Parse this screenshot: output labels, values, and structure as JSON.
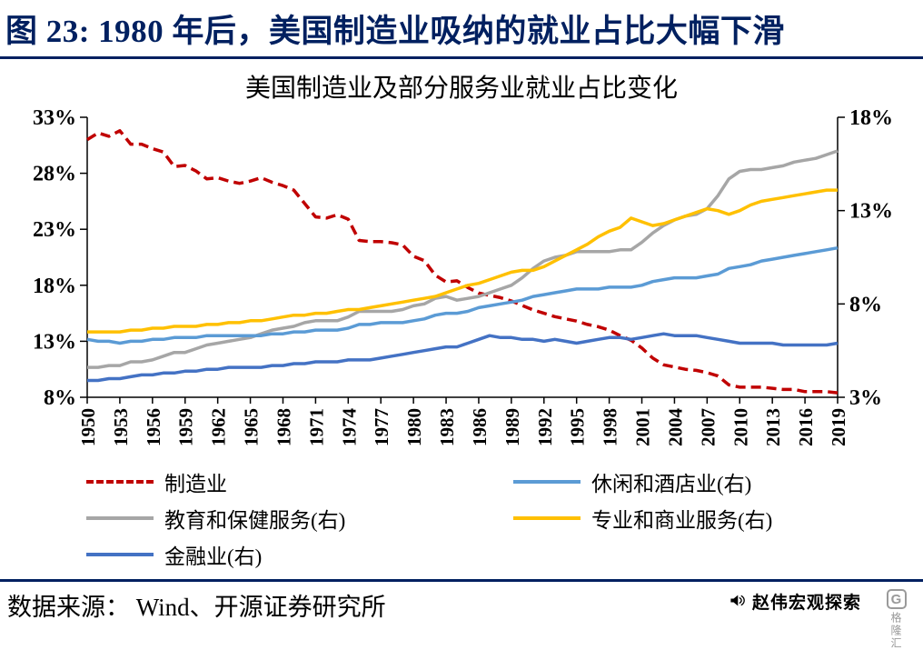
{
  "header": {
    "title": "图 23:  1980 年后，美国制造业吸纳的就业占比大幅下滑",
    "accent_color": "#002060"
  },
  "chart": {
    "title": "美国制造业及部分服务业就业占比变化"
  },
  "footer": {
    "source": "数据来源： Wind、开源证券研究所",
    "watermark": "赵伟宏观探索",
    "watermark_icon": "speaker-icon",
    "logo_badge": "G",
    "logo_text": "格隆汇"
  },
  "chart_data": {
    "type": "line",
    "title": "美国制造业及部分服务业就业占比变化",
    "grid": false,
    "legend_position": "bottom",
    "legend_order": [
      0,
      3,
      1,
      4,
      2
    ],
    "x": [
      1950,
      1951,
      1952,
      1953,
      1954,
      1955,
      1956,
      1957,
      1958,
      1959,
      1960,
      1961,
      1962,
      1963,
      1964,
      1965,
      1966,
      1967,
      1968,
      1969,
      1970,
      1971,
      1972,
      1973,
      1974,
      1975,
      1976,
      1977,
      1978,
      1979,
      1980,
      1981,
      1982,
      1983,
      1984,
      1985,
      1986,
      1987,
      1988,
      1989,
      1990,
      1991,
      1992,
      1993,
      1994,
      1995,
      1996,
      1997,
      1998,
      1999,
      2000,
      2001,
      2002,
      2003,
      2004,
      2005,
      2006,
      2007,
      2008,
      2009,
      2010,
      2011,
      2012,
      2013,
      2014,
      2015,
      2016,
      2017,
      2018,
      2019
    ],
    "x_ticks": [
      1950,
      1953,
      1956,
      1959,
      1962,
      1965,
      1968,
      1971,
      1974,
      1977,
      1980,
      1983,
      1986,
      1989,
      1992,
      1995,
      1998,
      2001,
      2004,
      2007,
      2010,
      2013,
      2016,
      2019
    ],
    "left_axis": {
      "min": 8,
      "max": 33,
      "tick_values": [
        8,
        13,
        18,
        23,
        28,
        33
      ],
      "unit": "%"
    },
    "right_axis": {
      "min": 3,
      "max": 18,
      "tick_values": [
        3,
        8,
        13,
        18
      ],
      "unit": "%"
    },
    "series": [
      {
        "name": "制造业",
        "axis": "left",
        "color": "#C00000",
        "style": "dashed",
        "values": [
          31.0,
          31.6,
          31.3,
          31.8,
          30.6,
          30.6,
          30.2,
          29.9,
          28.6,
          28.7,
          28.2,
          27.5,
          27.6,
          27.3,
          27.1,
          27.3,
          27.6,
          27.2,
          26.9,
          26.5,
          25.3,
          24.1,
          24.0,
          24.3,
          23.9,
          22.0,
          21.9,
          21.9,
          21.8,
          21.6,
          20.6,
          20.2,
          18.9,
          18.3,
          18.4,
          17.8,
          17.3,
          17.1,
          16.9,
          16.6,
          16.2,
          15.8,
          15.5,
          15.2,
          15.0,
          14.8,
          14.5,
          14.3,
          14.0,
          13.5,
          13.1,
          12.4,
          11.5,
          10.9,
          10.7,
          10.5,
          10.4,
          10.2,
          9.9,
          9.1,
          8.9,
          8.9,
          8.9,
          8.8,
          8.7,
          8.7,
          8.5,
          8.5,
          8.5,
          8.4
        ]
      },
      {
        "name": "教育和保健服务(右)",
        "axis": "right",
        "color": "#A6A6A6",
        "style": "solid",
        "values": [
          4.6,
          4.6,
          4.7,
          4.7,
          4.9,
          4.9,
          5.0,
          5.2,
          5.4,
          5.4,
          5.6,
          5.8,
          5.9,
          6.0,
          6.1,
          6.2,
          6.4,
          6.6,
          6.7,
          6.8,
          7.0,
          7.1,
          7.1,
          7.1,
          7.3,
          7.6,
          7.6,
          7.6,
          7.6,
          7.7,
          7.9,
          8.0,
          8.3,
          8.4,
          8.2,
          8.3,
          8.4,
          8.6,
          8.8,
          9.0,
          9.4,
          9.9,
          10.3,
          10.5,
          10.6,
          10.8,
          10.8,
          10.8,
          10.8,
          10.9,
          10.9,
          11.3,
          11.8,
          12.2,
          12.5,
          12.7,
          12.8,
          13.1,
          13.8,
          14.7,
          15.1,
          15.2,
          15.2,
          15.3,
          15.4,
          15.6,
          15.7,
          15.8,
          16.0,
          16.2
        ]
      },
      {
        "name": "金融业(右)",
        "axis": "right",
        "color": "#4472C4",
        "style": "solid",
        "values": [
          3.9,
          3.9,
          4.0,
          4.0,
          4.1,
          4.2,
          4.2,
          4.3,
          4.3,
          4.4,
          4.4,
          4.5,
          4.5,
          4.6,
          4.6,
          4.6,
          4.6,
          4.7,
          4.7,
          4.8,
          4.8,
          4.9,
          4.9,
          4.9,
          5.0,
          5.0,
          5.0,
          5.1,
          5.2,
          5.3,
          5.4,
          5.5,
          5.6,
          5.7,
          5.7,
          5.9,
          6.1,
          6.3,
          6.2,
          6.2,
          6.1,
          6.1,
          6.0,
          6.1,
          6.0,
          5.9,
          6.0,
          6.1,
          6.2,
          6.2,
          6.1,
          6.2,
          6.3,
          6.4,
          6.3,
          6.3,
          6.3,
          6.2,
          6.1,
          6.0,
          5.9,
          5.9,
          5.9,
          5.9,
          5.8,
          5.8,
          5.8,
          5.8,
          5.8,
          5.9
        ]
      },
      {
        "name": "休闲和酒店业(右)",
        "axis": "right",
        "color": "#5B9BD5",
        "style": "solid",
        "values": [
          6.1,
          6.0,
          6.0,
          5.9,
          6.0,
          6.0,
          6.1,
          6.1,
          6.2,
          6.2,
          6.2,
          6.3,
          6.3,
          6.3,
          6.3,
          6.3,
          6.3,
          6.4,
          6.4,
          6.5,
          6.5,
          6.6,
          6.6,
          6.6,
          6.7,
          6.9,
          6.9,
          7.0,
          7.0,
          7.0,
          7.1,
          7.2,
          7.4,
          7.5,
          7.5,
          7.6,
          7.8,
          7.9,
          8.0,
          8.1,
          8.2,
          8.4,
          8.5,
          8.6,
          8.7,
          8.8,
          8.8,
          8.8,
          8.9,
          8.9,
          8.9,
          9.0,
          9.2,
          9.3,
          9.4,
          9.4,
          9.4,
          9.5,
          9.6,
          9.9,
          10.0,
          10.1,
          10.3,
          10.4,
          10.5,
          10.6,
          10.7,
          10.8,
          10.9,
          11.0
        ]
      },
      {
        "name": "专业和商业服务(右)",
        "axis": "right",
        "color": "#FFC000",
        "style": "solid",
        "values": [
          6.5,
          6.5,
          6.5,
          6.5,
          6.6,
          6.6,
          6.7,
          6.7,
          6.8,
          6.8,
          6.8,
          6.9,
          6.9,
          7.0,
          7.0,
          7.1,
          7.1,
          7.2,
          7.3,
          7.4,
          7.4,
          7.5,
          7.5,
          7.6,
          7.7,
          7.7,
          7.8,
          7.9,
          8.0,
          8.1,
          8.2,
          8.3,
          8.4,
          8.6,
          8.8,
          9.0,
          9.1,
          9.3,
          9.5,
          9.7,
          9.8,
          9.8,
          10.0,
          10.3,
          10.6,
          10.9,
          11.2,
          11.6,
          11.9,
          12.1,
          12.6,
          12.4,
          12.2,
          12.3,
          12.5,
          12.7,
          12.9,
          13.1,
          13.0,
          12.8,
          13.0,
          13.3,
          13.5,
          13.6,
          13.7,
          13.8,
          13.9,
          14.0,
          14.1,
          14.1
        ]
      }
    ]
  }
}
